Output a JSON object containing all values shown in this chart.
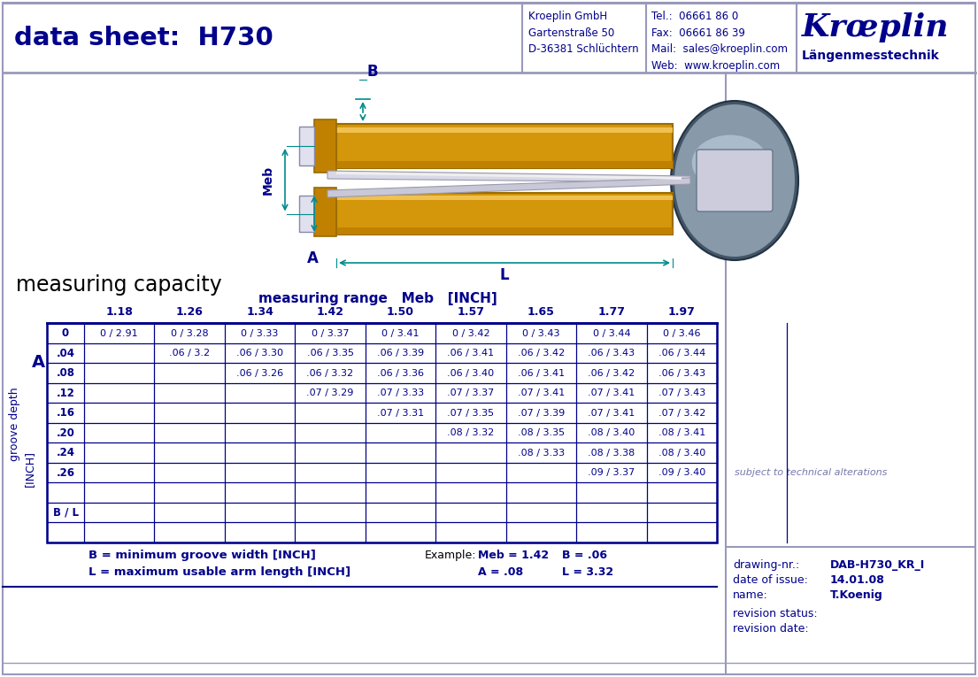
{
  "title": "data sheet:  H730",
  "dark_blue": "#00008B",
  "light_border": "#9999BB",
  "bg_color": "#FFFFFF",
  "header_company": "Kroeplin GmbH\nGartenstraße 50\nD-36381 Schlüchtern",
  "header_contact": "Tel.:  06661 86 0\nFax:  06661 86 39\nMail:  sales@kroeplin.com\nWeb:  www.kroeplin.com",
  "header_logo1": "Krœplin",
  "header_logo2": "Längenmesstechnik",
  "measuring_capacity_label": "measuring capacity",
  "table_header": "measuring range   Meb   [INCH]",
  "col_headers": [
    "1.18",
    "1.26",
    "1.34",
    "1.42",
    "1.50",
    "1.57",
    "1.65",
    "1.77",
    "1.97"
  ],
  "row_headers": [
    "0",
    ".04",
    ".08",
    ".12",
    ".16",
    ".20",
    ".24",
    ".26",
    "",
    "B / L"
  ],
  "table_data": [
    [
      "0 / 2.91",
      "0 / 3.28",
      "0 / 3.33",
      "0 / 3.37",
      "0 / 3.41",
      "0 / 3.42",
      "0 / 3.43",
      "0 / 3.44",
      "0 / 3.46"
    ],
    [
      "",
      ".06 / 3.2",
      ".06 / 3.30",
      ".06 / 3.35",
      ".06 / 3.39",
      ".06 / 3.41",
      ".06 / 3.42",
      ".06 / 3.43",
      ".06 / 3.44"
    ],
    [
      "",
      "",
      ".06 / 3.26",
      ".06 / 3.32",
      ".06 / 3.36",
      ".06 / 3.40",
      ".06 / 3.41",
      ".06 / 3.42",
      ".06 / 3.43"
    ],
    [
      "",
      "",
      "",
      ".07 / 3.29",
      ".07 / 3.33",
      ".07 / 3.37",
      ".07 / 3.41",
      ".07 / 3.41",
      ".07 / 3.43"
    ],
    [
      "",
      "",
      "",
      "",
      ".07 / 3.31",
      ".07 / 3.35",
      ".07 / 3.39",
      ".07 / 3.41",
      ".07 / 3.42"
    ],
    [
      "",
      "",
      "",
      "",
      "",
      ".08 / 3.32",
      ".08 / 3.35",
      ".08 / 3.40",
      ".08 / 3.41"
    ],
    [
      "",
      "",
      "",
      "",
      "",
      "",
      ".08 / 3.33",
      ".08 / 3.38",
      ".08 / 3.40"
    ],
    [
      "",
      "",
      "",
      "",
      "",
      "",
      "",
      ".09 / 3.37",
      ".09 / 3.40"
    ],
    [
      "",
      "",
      "",
      "",
      "",
      "",
      "",
      "",
      ""
    ],
    [
      "",
      "",
      "",
      "",
      "",
      "",
      "",
      "",
      ""
    ]
  ],
  "footnote1": "B = minimum groove width [INCH]",
  "footnote2": "L = maximum usable arm length [INCH]",
  "example_label": "Example:",
  "subject_text": "subject to technical alterations",
  "drawing_nr_label": "drawing-nr.:",
  "drawing_nr_val": "DAB-H730_KR_I",
  "date_label": "date of issue:",
  "date_val": "14.01.08",
  "name_label": "name:",
  "name_val": "T.Koenig",
  "rev_status_label": "revision status:",
  "rev_date_label": "revision date:",
  "groove_depth_label": "groove depth",
  "inch_label": "[INCH]",
  "a_label": "A",
  "gold_color": "#D4960A",
  "gold_dark": "#9A6B00",
  "gold_mid": "#C08000",
  "teal": "#008B8B",
  "gray_body": "#8899AA",
  "gray_dark": "#445566",
  "gray_light": "#AABBCC",
  "silver": "#D8D8E8",
  "silver_dark": "#999AAA"
}
